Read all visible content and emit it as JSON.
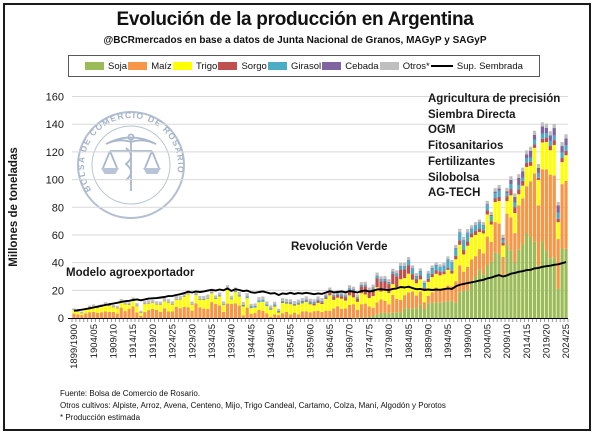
{
  "title": "Evolución de la producción en Argentina",
  "subtitle": "@BCRmercados en base a datos de Junta Nacional de Granos, MAGyP y SAGyP",
  "legend": {
    "items": [
      {
        "label": "Soja",
        "color": "#9BBB59"
      },
      {
        "label": "Maíz",
        "color": "#F79646"
      },
      {
        "label": "Trigo",
        "color": "#FFFF00"
      },
      {
        "label": "Sorgo",
        "color": "#C0504D"
      },
      {
        "label": "Girasol",
        "color": "#4BACC6"
      },
      {
        "label": "Cebada",
        "color": "#8064A2"
      },
      {
        "label": "Otros*",
        "color": "#BFBFBF"
      }
    ],
    "line": {
      "label": "Sup. Sembrada",
      "color": "#000000"
    }
  },
  "annotations": {
    "left": "Modelo agroexportador",
    "middle": "Revolución Verde",
    "right_list": [
      "Agricultura de precisión",
      "Siembra Directa",
      "OGM",
      "Fitosanitarios",
      "Fertilizantes",
      "Silobolsa",
      "AG-TECH"
    ]
  },
  "watermark": {
    "text": "BOLSA DE COMERCIO DE ROSARIO"
  },
  "footer": {
    "line1": "Fuente: Bolsa de Comercio de Rosario.",
    "line2": "Otros cultivos: Alpiste, Arroz, Avena, Centeno, Mijo, Trigo Candeal, Cartamo, Colza, Maní, Algodón y Porotos",
    "line3": "* Producción estimada"
  },
  "chart_data": {
    "type": "bar",
    "stacked": true,
    "title": "Evolución de la producción en Argentina",
    "ylabel": "Millones de toneladas",
    "ylim": [
      0,
      160
    ],
    "y_ticks": [
      0,
      20,
      40,
      60,
      80,
      100,
      120,
      140,
      160
    ],
    "grid": "horizontal",
    "x_tick_labels": [
      "1899/1900",
      "1904/05",
      "1909/10",
      "1914/15",
      "1919/20",
      "1924/25",
      "1929/30",
      "1934/35",
      "1939/40",
      "1944/45",
      "1949/50",
      "1954/55",
      "1959/60",
      "1964/65",
      "1969/70",
      "1974/75",
      "1979/80",
      "1984/85",
      "1989/90",
      "1994/95",
      "1999/00",
      "2004/05",
      "2009/10",
      "2014/15",
      "2019/20",
      "2024/25"
    ],
    "x_note": "one bar per season, 1899/1900 through 2024/25 (126 bars), labels every 5 seasons",
    "series": [
      {
        "name": "Soja",
        "color": "#9BBB59",
        "values": [
          0,
          0,
          0,
          0,
          0,
          0,
          0,
          0,
          0,
          0,
          0,
          0,
          0,
          0,
          0,
          0,
          0,
          0,
          0,
          0,
          0,
          0,
          0,
          0,
          0,
          0,
          0,
          0,
          0,
          0,
          0,
          0,
          0,
          0,
          0,
          0,
          0,
          0,
          0,
          0,
          0,
          0,
          0,
          0,
          0,
          0,
          0,
          0,
          0,
          0,
          0,
          0,
          0,
          0,
          0,
          0,
          0,
          0,
          0,
          0,
          0,
          0,
          0,
          0,
          0,
          0,
          0,
          0,
          0,
          0,
          0,
          0.1,
          0.1,
          0.3,
          0.5,
          0.7,
          1.4,
          2.7,
          3.7,
          3.7,
          3.5,
          3.8,
          4.2,
          4.0,
          7.0,
          6.5,
          7.1,
          7.0,
          9.9,
          6.5,
          10.7,
          10.9,
          11.3,
          11.0,
          11.7,
          12.1,
          12.4,
          11.0,
          18.7,
          20.0,
          20.1,
          26.9,
          30.0,
          34.8,
          31.6,
          38.3,
          40.5,
          47.5,
          46.2,
          31.0,
          52.7,
          48.9,
          40.1,
          49.3,
          53.4,
          61.4,
          58.8,
          55.0,
          37.8,
          55.3,
          48.8,
          43.1,
          43.9,
          21.0,
          50.2,
          50.0
        ]
      },
      {
        "name": "Maíz",
        "color": "#F79646",
        "values": [
          3.2,
          2.6,
          2.1,
          3.4,
          4.2,
          4.5,
          3.6,
          4.2,
          4.7,
          4.5,
          4.4,
          3.2,
          7.5,
          5.0,
          6.7,
          8.3,
          4.1,
          1.5,
          4.3,
          5.7,
          6.6,
          5.9,
          4.5,
          7.0,
          4.7,
          4.7,
          8.2,
          7.1,
          8.0,
          7.8,
          5.3,
          10.6,
          7.6,
          6.8,
          6.5,
          11.5,
          10.1,
          9.1,
          4.4,
          10.4,
          10.2,
          10.6,
          9.0,
          1.9,
          7.5,
          3.1,
          3.6,
          5.8,
          5.2,
          3.4,
          0.8,
          2.7,
          2.0,
          3.5,
          4.4,
          2.5,
          3.9,
          2.7,
          4.8,
          4.9,
          4.1,
          4.9,
          5.2,
          4.4,
          5.3,
          5.1,
          7.0,
          8.5,
          6.6,
          6.9,
          9.4,
          9.9,
          5.9,
          9.7,
          9.9,
          7.7,
          5.9,
          8.5,
          9.7,
          8.7,
          6.4,
          12.9,
          9.6,
          9.0,
          9.5,
          11.9,
          12.1,
          9.2,
          9.2,
          4.9,
          5.4,
          7.7,
          10.7,
          10.0,
          10.2,
          11.4,
          10.5,
          15.5,
          19.4,
          13.5,
          16.8,
          15.4,
          14.7,
          15.0,
          15.0,
          20.5,
          14.4,
          21.8,
          22.0,
          13.1,
          22.7,
          23.8,
          21.2,
          32.1,
          33.0,
          33.8,
          39.8,
          49.5,
          43.5,
          52.0,
          58.5,
          60.5,
          59.0,
          36.0,
          46.5,
          49.0
        ]
      },
      {
        "name": "Trigo",
        "color": "#FFFF00",
        "values": [
          2.8,
          2.0,
          1.5,
          2.8,
          3.5,
          4.1,
          3.7,
          4.2,
          5.2,
          4.3,
          3.6,
          4.0,
          4.5,
          5.1,
          2.9,
          4.6,
          4.6,
          2.2,
          5.9,
          5.0,
          4.5,
          4.1,
          5.2,
          5.3,
          6.6,
          5.2,
          5.2,
          6.3,
          7.7,
          9.5,
          4.4,
          6.3,
          5.9,
          6.6,
          7.8,
          6.5,
          3.8,
          6.7,
          5.0,
          10.3,
          3.3,
          8.1,
          6.5,
          6.4,
          6.8,
          4.0,
          3.9,
          5.6,
          6.5,
          5.2,
          5.1,
          5.8,
          2.1,
          7.6,
          6.2,
          7.7,
          5.2,
          7.1,
          5.8,
          6.7,
          5.8,
          4.2,
          5.7,
          5.7,
          8.5,
          11.3,
          6.1,
          6.2,
          7.3,
          5.7,
          7.0,
          4.9,
          5.7,
          7.9,
          6.6,
          6.0,
          8.6,
          11.0,
          5.7,
          8.1,
          8.1,
          7.8,
          8.3,
          15.0,
          12.3,
          13.6,
          8.5,
          8.9,
          8.8,
          8.5,
          10.0,
          10.9,
          9.9,
          9.8,
          9.7,
          11.3,
          9.2,
          15.9,
          14.8,
          12.4,
          15.3,
          16.0,
          15.3,
          12.3,
          14.5,
          16.0,
          12.6,
          14.5,
          16.3,
          8.3,
          9.0,
          15.9,
          14.5,
          8.0,
          9.2,
          13.9,
          11.3,
          18.4,
          18.5,
          19.5,
          19.8,
          17.6,
          22.1,
          12.2,
          15.9,
          18.6
        ]
      },
      {
        "name": "Sorgo",
        "color": "#C0504D",
        "values": [
          0,
          0,
          0,
          0,
          0,
          0,
          0,
          0,
          0,
          0,
          0,
          0,
          0,
          0,
          0,
          0,
          0,
          0,
          0,
          0,
          0,
          0,
          0,
          0,
          0,
          0,
          0,
          0,
          0,
          0,
          0,
          0,
          0,
          0,
          0,
          0,
          0,
          0,
          0,
          0,
          0,
          0,
          0,
          0,
          0,
          0,
          0,
          0,
          0,
          0,
          0,
          0.1,
          0.1,
          0.1,
          0.2,
          0.2,
          0.2,
          0.3,
          0.5,
          0.6,
          0.8,
          1.3,
          1.4,
          1.2,
          1.3,
          2.0,
          2.6,
          1.9,
          1.9,
          2.5,
          3.8,
          4.7,
          2.3,
          4.8,
          5.9,
          4.8,
          5.1,
          6.6,
          7.2,
          6.2,
          6.5,
          7.5,
          8.0,
          7.0,
          6.5,
          6.2,
          4.0,
          3.0,
          3.0,
          2.0,
          2.1,
          2.3,
          2.7,
          2.9,
          2.1,
          1.6,
          2.1,
          2.5,
          3.2,
          3.2,
          3.3,
          2.9,
          2.8,
          2.7,
          2.2,
          2.9,
          2.3,
          2.8,
          2.9,
          1.8,
          3.6,
          4.5,
          4.3,
          3.6,
          3.5,
          3.1,
          3.0,
          2.5,
          1.5,
          2.6,
          3.2,
          3.3,
          3.5,
          2.5,
          3.0,
          3.1
        ]
      },
      {
        "name": "Girasol",
        "color": "#4BACC6",
        "values": [
          0,
          0,
          0,
          0,
          0,
          0,
          0,
          0,
          0,
          0,
          0,
          0,
          0,
          0,
          0,
          0,
          0,
          0,
          0,
          0,
          0,
          0,
          0,
          0,
          0,
          0,
          0,
          0,
          0,
          0,
          0,
          0.1,
          0.1,
          0.1,
          0.1,
          0.2,
          0.2,
          0.2,
          0.3,
          0.3,
          0.4,
          0.6,
          0.7,
          0.8,
          1.0,
          0.9,
          0.8,
          1.1,
          1.2,
          1.0,
          0.9,
          0.8,
          0.6,
          0.7,
          0.6,
          0.5,
          0.6,
          0.7,
          0.9,
          0.8,
          0.9,
          0.8,
          0.9,
          0.8,
          0.8,
          0.8,
          0.8,
          0.9,
          0.9,
          0.9,
          1.1,
          0.8,
          0.8,
          0.9,
          1.0,
          0.7,
          0.9,
          1.6,
          1.6,
          1.4,
          1.4,
          1.3,
          2.0,
          2.4,
          2.2,
          3.4,
          4.1,
          2.2,
          2.9,
          3.2,
          3.8,
          4.0,
          3.4,
          3.0,
          4.1,
          5.8,
          5.6,
          5.4,
          5.6,
          7.1,
          6.1,
          3.2,
          3.8,
          3.7,
          3.2,
          3.7,
          3.8,
          3.5,
          4.6,
          2.4,
          2.2,
          3.7,
          3.3,
          3.1,
          2.1,
          3.1,
          3.0,
          3.5,
          3.5,
          3.8,
          3.3,
          3.4,
          3.4,
          4.5,
          4.0,
          4.0
        ]
      },
      {
        "name": "Cebada",
        "color": "#8064A2",
        "values": [
          0.2,
          0.2,
          0.2,
          0.2,
          0.2,
          0.2,
          0.2,
          0.2,
          0.2,
          0.2,
          0.2,
          0.2,
          0.2,
          0.2,
          0.2,
          0.2,
          0.2,
          0.2,
          0.2,
          0.2,
          0.2,
          0.2,
          0.2,
          0.2,
          0.2,
          0.2,
          0.2,
          0.2,
          0.2,
          0.2,
          0.2,
          0.2,
          0.2,
          0.2,
          0.2,
          0.2,
          0.2,
          0.2,
          0.2,
          0.2,
          0.3,
          0.3,
          0.3,
          0.3,
          0.3,
          0.3,
          0.3,
          0.3,
          0.3,
          0.3,
          0.3,
          0.3,
          0.3,
          0.3,
          0.3,
          0.3,
          0.3,
          0.3,
          0.3,
          0.3,
          0.3,
          0.3,
          0.3,
          0.3,
          0.3,
          0.3,
          0.3,
          0.3,
          0.3,
          0.3,
          0.2,
          0.2,
          0.2,
          0.2,
          0.2,
          0.2,
          0.2,
          0.2,
          0.2,
          0.2,
          0.2,
          0.2,
          0.2,
          0.2,
          0.2,
          0.2,
          0.2,
          0.2,
          0.2,
          0.2,
          0.3,
          0.3,
          0.3,
          0.3,
          0.3,
          0.3,
          0.3,
          0.3,
          0.3,
          0.3,
          0.3,
          0.4,
          0.5,
          0.5,
          0.6,
          0.8,
          0.9,
          1.2,
          1.5,
          1.3,
          1.4,
          3.0,
          4.1,
          5.1,
          4.7,
          2.9,
          4.9,
          3.3,
          3.7,
          5.1,
          3.8,
          4.1,
          5.3,
          5.1,
          4.6,
          5.0
        ]
      },
      {
        "name": "Otros*",
        "color": "#BFBFBF",
        "values": [
          0.7,
          0.7,
          0.8,
          0.9,
          1.0,
          1.0,
          1.1,
          1.2,
          1.3,
          1.3,
          1.4,
          1.4,
          1.5,
          1.6,
          1.5,
          1.7,
          1.8,
          1.4,
          1.8,
          1.9,
          1.8,
          1.8,
          1.9,
          2.0,
          2.1,
          2.0,
          2.2,
          2.2,
          2.3,
          2.4,
          2.0,
          2.2,
          2.1,
          2.2,
          2.3,
          2.4,
          2.0,
          2.3,
          2.1,
          2.5,
          1.9,
          2.4,
          2.3,
          2.1,
          2.3,
          1.9,
          1.9,
          2.2,
          2.3,
          2.1,
          1.9,
          2.1,
          1.6,
          2.2,
          2.1,
          2.3,
          2.0,
          2.2,
          2.1,
          2.3,
          2.1,
          2.0,
          2.1,
          2.0,
          2.3,
          2.5,
          2.1,
          2.1,
          2.2,
          2.0,
          2.2,
          2.0,
          1.9,
          2.1,
          2.1,
          1.9,
          2.0,
          2.2,
          2.0,
          2.0,
          1.9,
          2.1,
          2.1,
          2.3,
          2.2,
          2.3,
          2.0,
          1.9,
          1.9,
          1.7,
          1.8,
          1.9,
          1.9,
          1.8,
          1.9,
          2.0,
          1.9,
          2.2,
          2.4,
          2.2,
          2.3,
          2.2,
          2.2,
          2.1,
          2.2,
          2.4,
          2.2,
          2.5,
          2.6,
          2.0,
          2.4,
          2.6,
          2.5,
          2.7,
          2.7,
          2.8,
          2.9,
          3.0,
          2.8,
          3.0,
          3.0,
          2.9,
          3.0,
          2.6,
          2.9,
          3.0
        ]
      }
    ],
    "line": {
      "name": "Sup. Sembrada",
      "color": "#000000",
      "values": [
        5.2,
        5.6,
        6.0,
        6.5,
        7.0,
        7.6,
        8.2,
        8.8,
        9.4,
        10.0,
        10.5,
        11.0,
        11.6,
        12.1,
        12.4,
        13.0,
        13.4,
        12.8,
        13.4,
        14.0,
        14.2,
        14.4,
        14.8,
        15.2,
        15.8,
        16.0,
        16.6,
        17.2,
        18.0,
        19.0,
        18.4,
        19.2,
        18.8,
        19.2,
        19.8,
        20.4,
        19.8,
        20.6,
        20.0,
        21.4,
        19.6,
        20.8,
        20.2,
        19.4,
        19.8,
        18.6,
        18.2,
        18.8,
        19.2,
        18.4,
        17.6,
        18.0,
        16.6,
        17.8,
        17.4,
        18.2,
        17.4,
        18.0,
        17.6,
        18.2,
        17.8,
        17.2,
        17.8,
        17.4,
        18.4,
        19.4,
        18.6,
        18.8,
        19.2,
        18.6,
        19.4,
        19.0,
        18.4,
        19.4,
        19.8,
        19.2,
        19.6,
        20.6,
        20.8,
        20.4,
        20.2,
        21.0,
        21.4,
        22.4,
        22.0,
        22.6,
        21.6,
        20.8,
        21.0,
        20.2,
        20.6,
        20.2,
        20.6,
        20.4,
        20.8,
        21.4,
        21.0,
        22.8,
        24.0,
        24.6,
        25.2,
        25.8,
        26.4,
        27.0,
        27.6,
        28.6,
        29.2,
        30.2,
        31.0,
        30.0,
        30.8,
        32.0,
        32.6,
        33.4,
        33.8,
        34.6,
        34.8,
        35.8,
        36.2,
        37.0,
        37.4,
        37.8,
        38.4,
        38.8,
        39.6,
        40.4
      ]
    }
  }
}
